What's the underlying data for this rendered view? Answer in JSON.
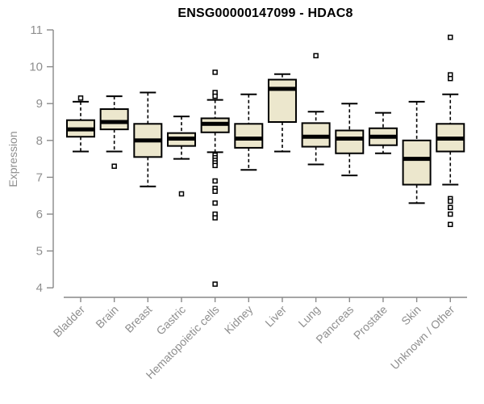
{
  "chart_data": {
    "type": "boxplot",
    "title": "ENSG00000147099 - HDAC8",
    "ylabel": "Expression",
    "xlabel": "",
    "ylim": [
      4,
      11
    ],
    "yticks": [
      4,
      5,
      6,
      7,
      8,
      9,
      10,
      11
    ],
    "grid": false,
    "legend": "none",
    "categories": [
      "Bladder",
      "Brain",
      "Breast",
      "Gastric",
      "Hematopoietic cells",
      "Kidney",
      "Liver",
      "Lung",
      "Pancreas",
      "Prostate",
      "Skin",
      "Unknown / Other"
    ],
    "boxes": [
      {
        "category": "Bladder",
        "whisker_low": 7.7,
        "q1": 8.1,
        "median": 8.3,
        "q3": 8.55,
        "whisker_high": 9.05,
        "outliers": [
          9.15
        ]
      },
      {
        "category": "Brain",
        "whisker_low": 7.7,
        "q1": 8.3,
        "median": 8.5,
        "q3": 8.85,
        "whisker_high": 9.2,
        "outliers": [
          7.3
        ]
      },
      {
        "category": "Breast",
        "whisker_low": 6.75,
        "q1": 7.55,
        "median": 8.0,
        "q3": 8.45,
        "whisker_high": 9.3,
        "outliers": []
      },
      {
        "category": "Gastric",
        "whisker_low": 7.5,
        "q1": 7.85,
        "median": 8.05,
        "q3": 8.2,
        "whisker_high": 8.65,
        "outliers": [
          6.55
        ]
      },
      {
        "category": "Hematopoietic cells",
        "whisker_low": 7.68,
        "q1": 8.22,
        "median": 8.45,
        "q3": 8.6,
        "whisker_high": 9.1,
        "outliers": [
          9.85,
          9.3,
          9.2,
          7.6,
          7.53,
          7.46,
          7.39,
          7.32,
          6.9,
          6.7,
          6.62,
          6.3,
          6.0,
          5.9,
          4.1
        ]
      },
      {
        "category": "Kidney",
        "whisker_low": 7.2,
        "q1": 7.8,
        "median": 8.05,
        "q3": 8.45,
        "whisker_high": 9.25,
        "outliers": []
      },
      {
        "category": "Liver",
        "whisker_low": 7.7,
        "q1": 8.5,
        "median": 9.4,
        "q3": 9.65,
        "whisker_high": 9.8,
        "outliers": []
      },
      {
        "category": "Lung",
        "whisker_low": 7.35,
        "q1": 7.83,
        "median": 8.1,
        "q3": 8.47,
        "whisker_high": 8.78,
        "outliers": [
          10.3
        ]
      },
      {
        "category": "Pancreas",
        "whisker_low": 7.05,
        "q1": 7.65,
        "median": 8.05,
        "q3": 8.27,
        "whisker_high": 9.0,
        "outliers": []
      },
      {
        "category": "Prostate",
        "whisker_low": 7.65,
        "q1": 7.87,
        "median": 8.1,
        "q3": 8.33,
        "whisker_high": 8.75,
        "outliers": []
      },
      {
        "category": "Skin",
        "whisker_low": 6.3,
        "q1": 6.8,
        "median": 7.5,
        "q3": 8.0,
        "whisker_high": 9.05,
        "outliers": []
      },
      {
        "category": "Unknown / Other",
        "whisker_low": 6.8,
        "q1": 7.7,
        "median": 8.05,
        "q3": 8.45,
        "whisker_high": 9.25,
        "outliers": [
          10.8,
          9.78,
          9.68,
          6.42,
          6.35,
          6.18,
          6.0,
          5.72
        ]
      }
    ],
    "colors": {
      "box_fill": "#ece7cd",
      "box_stroke": "#000000",
      "median": "#000000",
      "whisker": "#000000",
      "axis": "#898989",
      "labels": "#8f8f8f",
      "title": "#000000",
      "outlier_fill": "#ffffff"
    }
  }
}
